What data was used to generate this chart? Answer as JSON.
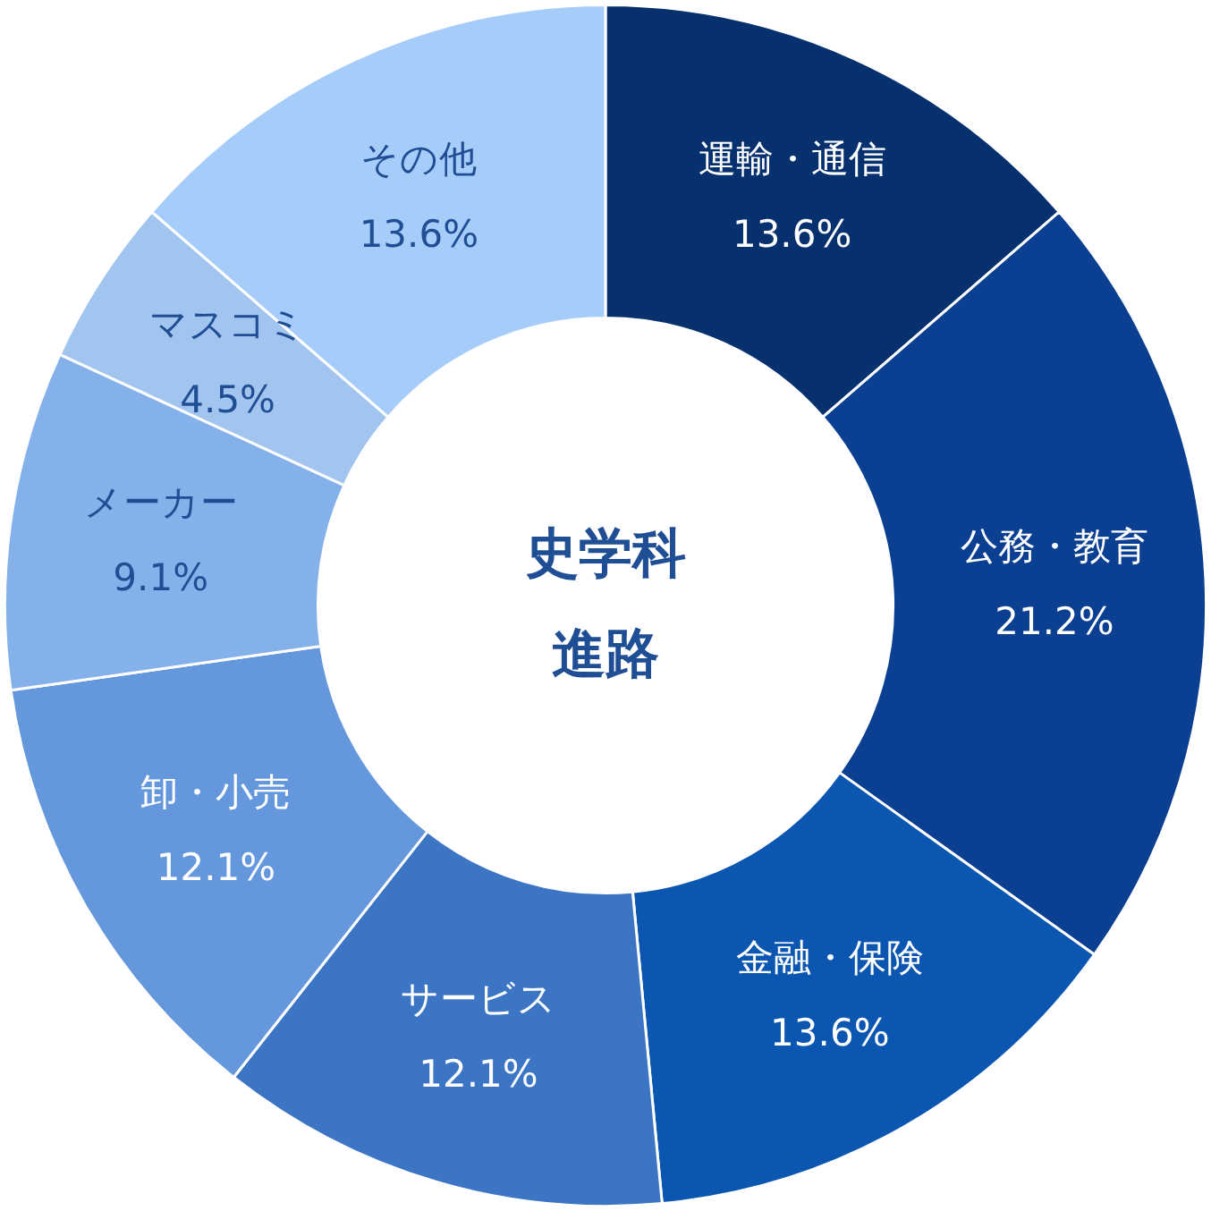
{
  "chart_data": {
    "type": "donut",
    "title": "史学科",
    "subtitle": "進路",
    "categories": [
      "運輸・通信",
      "公務・教育",
      "金融・保険",
      "サービス",
      "卸・小売",
      "メーカー",
      "マスコミ",
      "その他"
    ],
    "values": [
      13.6,
      21.2,
      13.6,
      12.1,
      12.1,
      9.1,
      4.5,
      13.6
    ],
    "value_labels": [
      "13.6%",
      "21.2%",
      "13.6%",
      "12.1%",
      "12.1%",
      "9.1%",
      "4.5%",
      "13.6%"
    ],
    "colors": [
      "#06306e",
      "#0a3f91",
      "#0b56b0",
      "#3b75c4",
      "#6497dc",
      "#85b1ea",
      "#a2c5ef",
      "#a6cdf9"
    ],
    "legend": false
  }
}
